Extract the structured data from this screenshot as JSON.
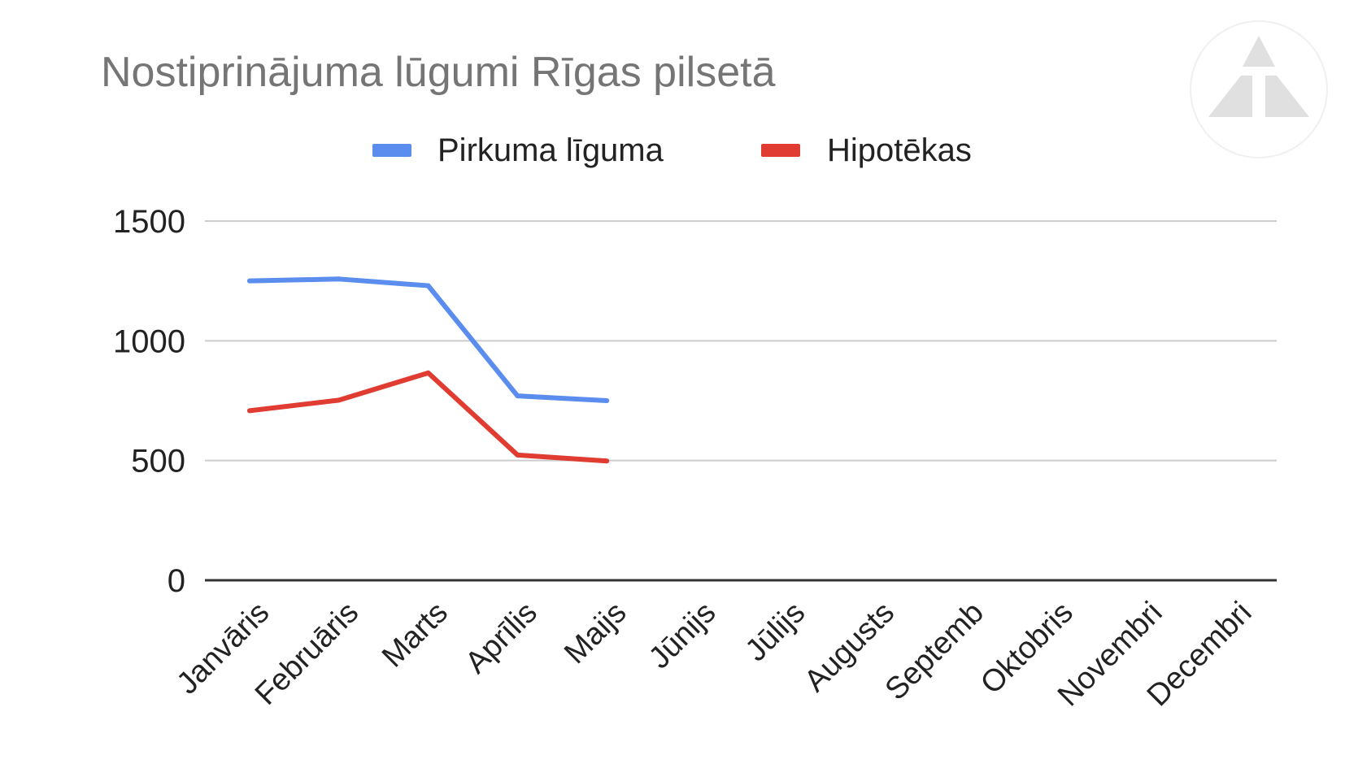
{
  "chart_data": {
    "type": "line",
    "title": "Nostiprinājuma lūgumi Rīgas pilsetā",
    "xlabel": "",
    "ylabel": "",
    "categories": [
      "Janvāris",
      "Februāris",
      "Marts",
      "Aprīlis",
      "Maijs",
      "Jūnijs",
      "Jūlijs",
      "Augusts",
      "Septemb",
      "Oktobris",
      "Novembri",
      "Decembri"
    ],
    "series": [
      {
        "name": "Pirkuma līguma",
        "color": "#5B8DEF",
        "values": [
          1250,
          1258,
          1230,
          770,
          750,
          null,
          null,
          null,
          null,
          null,
          null,
          null
        ]
      },
      {
        "name": "Hipotēkas",
        "color": "#E03C31",
        "values": [
          708,
          752,
          866,
          523,
          498,
          null,
          null,
          null,
          null,
          null,
          null,
          null
        ]
      }
    ],
    "ylim": [
      0,
      1500
    ],
    "y_ticks": [
      0,
      500,
      1000,
      1500
    ],
    "grid": true,
    "legend_position": "top",
    "x_label_rotation": "diagonal"
  },
  "watermark": {
    "icon": "triangle-logo-icon",
    "color": "#E0E0E0"
  }
}
